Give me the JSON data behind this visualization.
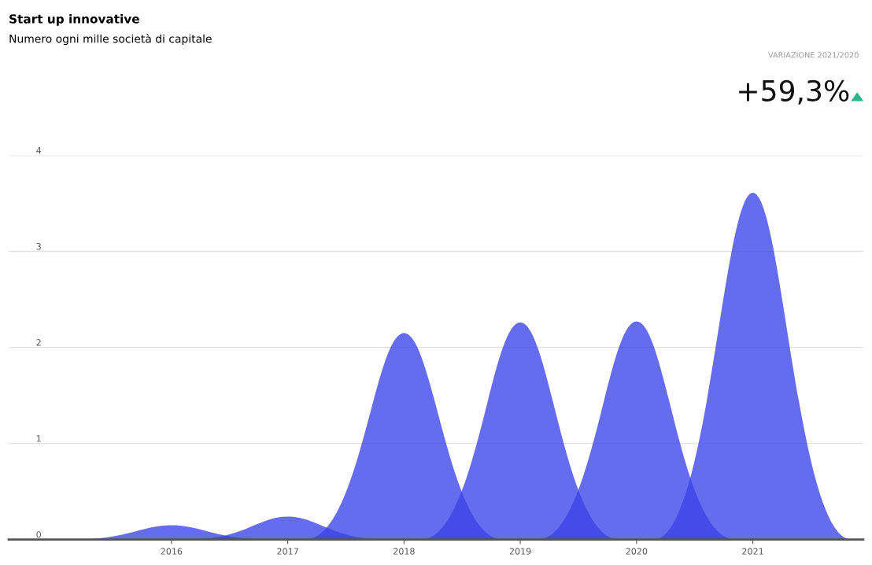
{
  "chart_data": {
    "type": "area",
    "title": "Start up innovative",
    "subtitle": "Numero ogni mille società di capitale",
    "categories": [
      "2016",
      "2017",
      "2018",
      "2019",
      "2020",
      "2021"
    ],
    "series": [
      {
        "color": "#3a42e8",
        "values": [
          0.15,
          0.24,
          2.15,
          2.26,
          2.27,
          3.61
        ]
      }
    ],
    "ylim": [
      0,
      4
    ],
    "yticks": [
      0,
      1,
      2,
      3,
      4
    ],
    "grid": "y",
    "annotations": [
      "VARIAZIONE 2021/2020",
      "+59,3%"
    ]
  }
}
